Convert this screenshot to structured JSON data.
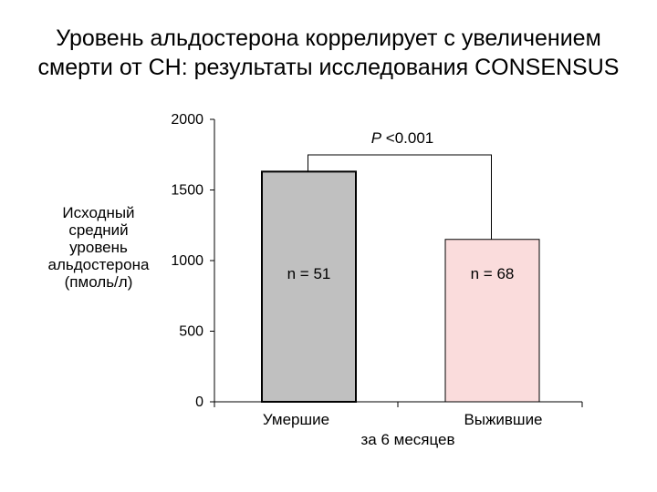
{
  "title_lines": [
    "Уровень альдостерона коррелирует с увеличением",
    "смерти от СН: результаты исследования CONSENSUS"
  ],
  "ylabel_lines": [
    "Исходный",
    "средний",
    "уровень",
    "альдостерона",
    "(пмоль/л)"
  ],
  "chart_data": {
    "type": "bar",
    "title": "Уровень альдостерона коррелирует с увеличением смерти от СН: результаты исследования CONSENSUS",
    "ylabel": "Исходный средний уровень альдостерона (пмоль/л)",
    "xlabel": "за 6 месяцев",
    "categories": [
      "Умершие",
      "Выжившие"
    ],
    "values": [
      1630,
      1150
    ],
    "bar_labels": [
      "n = 51",
      "n = 68"
    ],
    "bar_colors": [
      "#c0c0c0",
      "#fadcdc"
    ],
    "ylim": [
      0,
      2000
    ],
    "yticks": [
      0,
      500,
      1000,
      1500,
      2000
    ],
    "ytick_labels": [
      "0",
      "500",
      "1000",
      "1500",
      "2000"
    ],
    "significance": {
      "p_italic": "P",
      "p_rest": " <0.001"
    },
    "grid": false,
    "legend": "none"
  }
}
